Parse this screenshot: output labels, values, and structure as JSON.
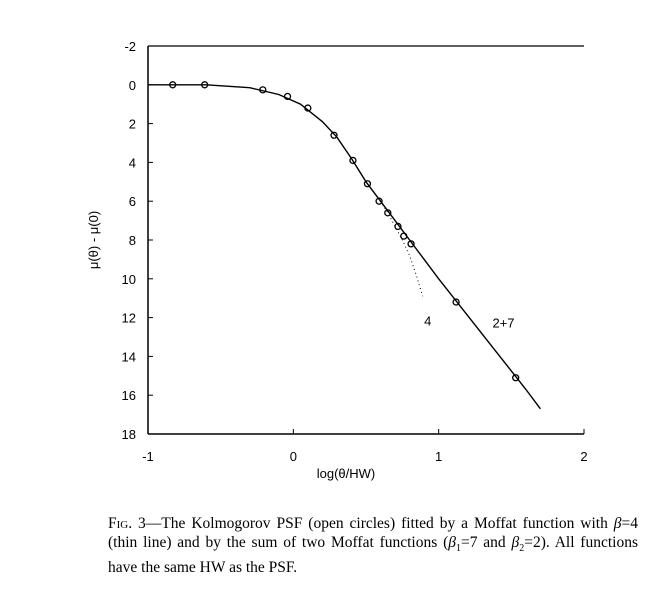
{
  "chart_data": {
    "type": "scatter",
    "title": "",
    "xlabel": "log(θ/HW)",
    "ylabel": "μ(θ) - μ(0)",
    "xlim": [
      -1,
      2
    ],
    "ylim": [
      18,
      -2
    ],
    "xticks": [
      "-1",
      "0",
      "1",
      "2"
    ],
    "xtick_values": [
      -1,
      0,
      1,
      2
    ],
    "yticks": [
      "-2",
      "0",
      "2",
      "4",
      "6",
      "8",
      "10",
      "12",
      "14",
      "16",
      "18"
    ],
    "ytick_values": [
      -2,
      0,
      2,
      4,
      6,
      8,
      10,
      12,
      14,
      16,
      18
    ],
    "grid": false,
    "series": [
      {
        "name": "Kolmogorov PSF (open circles)",
        "style": "open-circles",
        "x": [
          -0.83,
          -0.61,
          -0.21,
          -0.04,
          0.1,
          0.28,
          0.41,
          0.51,
          0.59,
          0.65,
          0.72,
          0.76,
          0.81,
          1.12,
          1.53
        ],
        "y": [
          0,
          0,
          0.26,
          0.6,
          1.2,
          2.6,
          3.9,
          5.1,
          6.0,
          6.6,
          7.3,
          7.8,
          8.2,
          11.2,
          15.1
        ]
      },
      {
        "name": "2+7",
        "style": "solid",
        "x": [
          -1,
          -0.6,
          -0.3,
          -0.1,
          0.05,
          0.2,
          0.3,
          0.4,
          0.5,
          0.6,
          0.7,
          0.8,
          1.0,
          1.2,
          1.4,
          1.6,
          1.7
        ],
        "y": [
          0,
          0,
          0.15,
          0.5,
          1.0,
          1.9,
          2.7,
          3.8,
          5.0,
          6.0,
          7.0,
          8.0,
          10.0,
          11.9,
          13.8,
          15.7,
          16.7
        ]
      },
      {
        "name": "4",
        "style": "dotted",
        "x": [
          0.55,
          0.6,
          0.65,
          0.7,
          0.75,
          0.8,
          0.85,
          0.89
        ],
        "y": [
          5.5,
          6.0,
          6.6,
          7.3,
          8.0,
          8.8,
          9.9,
          10.9
        ]
      }
    ],
    "annotations": [
      {
        "text": "4",
        "x": 0.9,
        "y": 12.4
      },
      {
        "text": "2+7",
        "x": 1.37,
        "y": 12.5
      }
    ]
  },
  "caption": {
    "fig": "Fig. 3",
    "t1": "—The Kolmogorov PSF (open circles) fitted by a Moffat function with ",
    "b": "β",
    "t2": "=4 (thin line) and by the sum of two Moffat functions (",
    "s1": "1",
    "t3": "=7 and ",
    "s2": "2",
    "t4": "=2). All functions have the same HW as the PSF."
  }
}
